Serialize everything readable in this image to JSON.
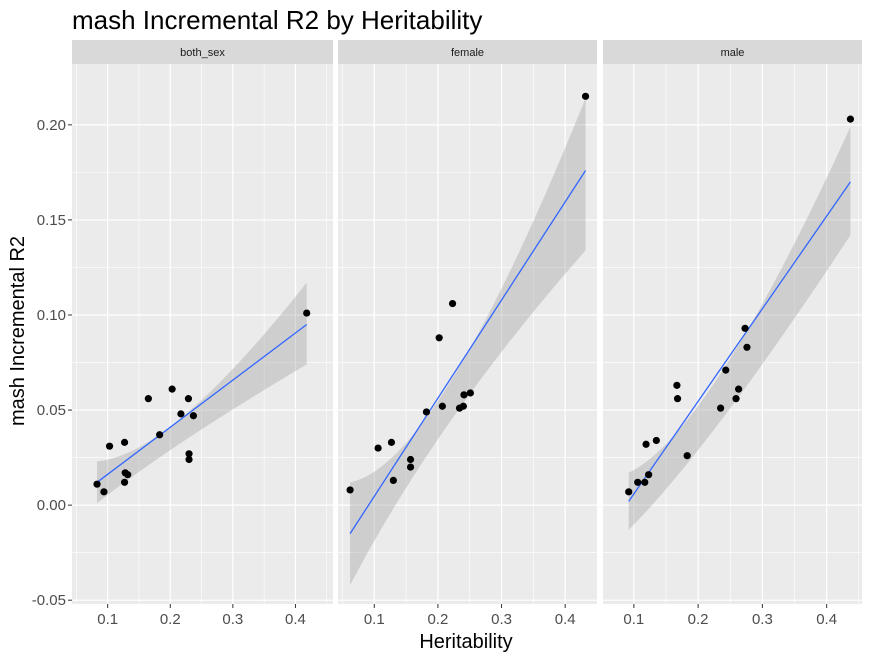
{
  "chart_data": {
    "type": "scatter",
    "title": "mash Incremental R2 by Heritability",
    "xlabel": "Heritability",
    "ylabel": "mash Incremental R2",
    "ylim": [
      -0.052,
      0.232
    ],
    "y_ticks": [
      -0.05,
      0.0,
      0.05,
      0.1,
      0.15,
      0.2
    ],
    "y_tick_labels": [
      "-0.05",
      "0.00",
      "0.05",
      "0.10",
      "0.15",
      "0.20"
    ],
    "grid": true,
    "smooth": "linear regression line with confidence band",
    "colors": {
      "panel_bg": "#ebebeb",
      "strip_bg": "#d9d9d9",
      "grid": "#ffffff",
      "point": "#000000",
      "line": "#3366ff",
      "band": "#999999"
    },
    "facets": [
      {
        "label": "both_sex",
        "xlim": [
          0.043,
          0.46
        ],
        "x_ticks": [
          0.1,
          0.2,
          0.3,
          0.4
        ],
        "x_tick_labels": [
          "0.1",
          "0.2",
          "0.3",
          "0.4"
        ],
        "points": [
          {
            "x": 0.083,
            "y": 0.011
          },
          {
            "x": 0.094,
            "y": 0.007
          },
          {
            "x": 0.103,
            "y": 0.031
          },
          {
            "x": 0.127,
            "y": 0.033
          },
          {
            "x": 0.128,
            "y": 0.017
          },
          {
            "x": 0.127,
            "y": 0.012
          },
          {
            "x": 0.132,
            "y": 0.016
          },
          {
            "x": 0.165,
            "y": 0.056
          },
          {
            "x": 0.183,
            "y": 0.037
          },
          {
            "x": 0.203,
            "y": 0.061
          },
          {
            "x": 0.217,
            "y": 0.048
          },
          {
            "x": 0.229,
            "y": 0.056
          },
          {
            "x": 0.237,
            "y": 0.047
          },
          {
            "x": 0.23,
            "y": 0.027
          },
          {
            "x": 0.23,
            "y": 0.024
          },
          {
            "x": 0.418,
            "y": 0.101
          }
        ],
        "fit": {
          "x0": 0.083,
          "y0": 0.012,
          "x1": 0.418,
          "y1": 0.095
        },
        "band": {
          "x0": 0.083,
          "lo0": 0.001,
          "hi0": 0.023,
          "xm": 0.2,
          "lom": 0.036,
          "him": 0.048,
          "x1": 0.418,
          "lo1": 0.074,
          "hi1": 0.117
        }
      },
      {
        "label": "female",
        "xlim": [
          0.043,
          0.45
        ],
        "x_ticks": [
          0.1,
          0.2,
          0.3,
          0.4
        ],
        "x_tick_labels": [
          "0.1",
          "0.2",
          "0.3",
          "0.4"
        ],
        "points": [
          {
            "x": 0.062,
            "y": 0.008
          },
          {
            "x": 0.106,
            "y": 0.03
          },
          {
            "x": 0.127,
            "y": 0.033
          },
          {
            "x": 0.13,
            "y": 0.013
          },
          {
            "x": 0.157,
            "y": 0.024
          },
          {
            "x": 0.157,
            "y": 0.02
          },
          {
            "x": 0.182,
            "y": 0.049
          },
          {
            "x": 0.202,
            "y": 0.088
          },
          {
            "x": 0.207,
            "y": 0.052
          },
          {
            "x": 0.223,
            "y": 0.106
          },
          {
            "x": 0.234,
            "y": 0.051
          },
          {
            "x": 0.24,
            "y": 0.052
          },
          {
            "x": 0.241,
            "y": 0.058
          },
          {
            "x": 0.251,
            "y": 0.059
          },
          {
            "x": 0.432,
            "y": 0.215
          }
        ],
        "fit": {
          "x0": 0.062,
          "y0": -0.015,
          "x1": 0.432,
          "y1": 0.176
        },
        "band": {
          "x0": 0.062,
          "lo0": -0.042,
          "hi0": 0.012,
          "xm": 0.2,
          "lom": 0.046,
          "him": 0.067,
          "x1": 0.432,
          "lo1": 0.134,
          "hi1": 0.214
        }
      },
      {
        "label": "male",
        "xlim": [
          0.052,
          0.455
        ],
        "x_ticks": [
          0.1,
          0.2,
          0.3,
          0.4
        ],
        "x_tick_labels": [
          "0.1",
          "0.2",
          "0.3",
          "0.4"
        ],
        "points": [
          {
            "x": 0.092,
            "y": 0.007
          },
          {
            "x": 0.106,
            "y": 0.012
          },
          {
            "x": 0.117,
            "y": 0.012
          },
          {
            "x": 0.119,
            "y": 0.032
          },
          {
            "x": 0.123,
            "y": 0.016
          },
          {
            "x": 0.135,
            "y": 0.034
          },
          {
            "x": 0.167,
            "y": 0.063
          },
          {
            "x": 0.168,
            "y": 0.056
          },
          {
            "x": 0.183,
            "y": 0.026
          },
          {
            "x": 0.235,
            "y": 0.051
          },
          {
            "x": 0.243,
            "y": 0.071
          },
          {
            "x": 0.259,
            "y": 0.056
          },
          {
            "x": 0.263,
            "y": 0.061
          },
          {
            "x": 0.273,
            "y": 0.093
          },
          {
            "x": 0.276,
            "y": 0.083
          },
          {
            "x": 0.437,
            "y": 0.203
          }
        ],
        "fit": {
          "x0": 0.092,
          "y0": 0.002,
          "x1": 0.437,
          "y1": 0.17
        },
        "band": {
          "x0": 0.092,
          "lo0": -0.013,
          "hi0": 0.017,
          "xm": 0.22,
          "lom": 0.056,
          "him": 0.073,
          "x1": 0.437,
          "lo1": 0.142,
          "hi1": 0.199
        }
      }
    ]
  }
}
